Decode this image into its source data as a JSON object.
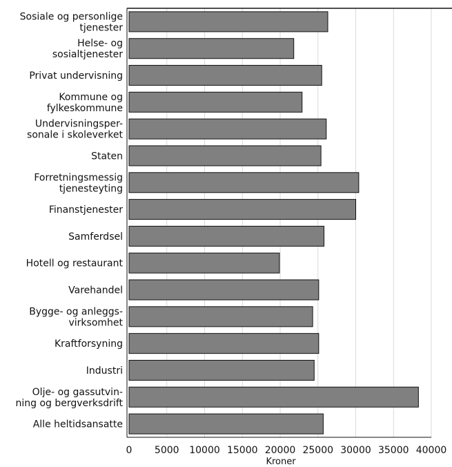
{
  "chart_data": {
    "type": "bar",
    "orientation": "horizontal",
    "categories": [
      "Sosiale og personlige tjenester",
      "Helse- og sosialtjenester",
      "Privat undervisning",
      "Kommune og fylkeskommune",
      "Undervisningsper-sonale i skoleverket",
      "Staten",
      "Forretningsmessig tjenesteyting",
      "Finanstjenester",
      "Samferdsel",
      "Hotell og restaurant",
      "Varehandel",
      "Bygge- og anleggs-virksomhet",
      "Kraftforsyning",
      "Industri",
      "Olje- og gassutvin-ning og bergverksdrift",
      "Alle heltidsansatte"
    ],
    "category_label_lines": [
      [
        "Sosiale og personlige",
        "tjenester"
      ],
      [
        "Helse- og",
        "sosialtjenester"
      ],
      [
        "Privat undervisning"
      ],
      [
        "Kommune og",
        "fylkeskommune"
      ],
      [
        "Undervisningsper-",
        "sonale i skoleverket"
      ],
      [
        "Staten"
      ],
      [
        "Forretningsmessig",
        "tjenesteyting"
      ],
      [
        "Finanstjenester"
      ],
      [
        "Samferdsel"
      ],
      [
        "Hotell og restaurant"
      ],
      [
        "Varehandel"
      ],
      [
        "Bygge- og anleggs-",
        "virksomhet"
      ],
      [
        "Kraftforsyning"
      ],
      [
        "Industri"
      ],
      [
        "Olje- og gassutvin-",
        "ning og bergverksdrift"
      ],
      [
        "Alle heltidsansatte"
      ]
    ],
    "values": [
      26300,
      21800,
      25500,
      22900,
      26100,
      25400,
      30400,
      30000,
      25800,
      19900,
      25100,
      24300,
      25100,
      24500,
      38300,
      25700
    ],
    "xlabel": "Kroner",
    "ylabel": "",
    "title": "",
    "xlim": [
      0,
      40000
    ],
    "xticks": [
      "0",
      "5000",
      "10000",
      "15000",
      "20000",
      "25000",
      "30000",
      "35000",
      "40000"
    ],
    "grid": "vertical",
    "legend": "none",
    "colors": {
      "bar_fill": "#808080",
      "bar_stroke": "#111111",
      "grid": "#d9d9d9"
    }
  }
}
